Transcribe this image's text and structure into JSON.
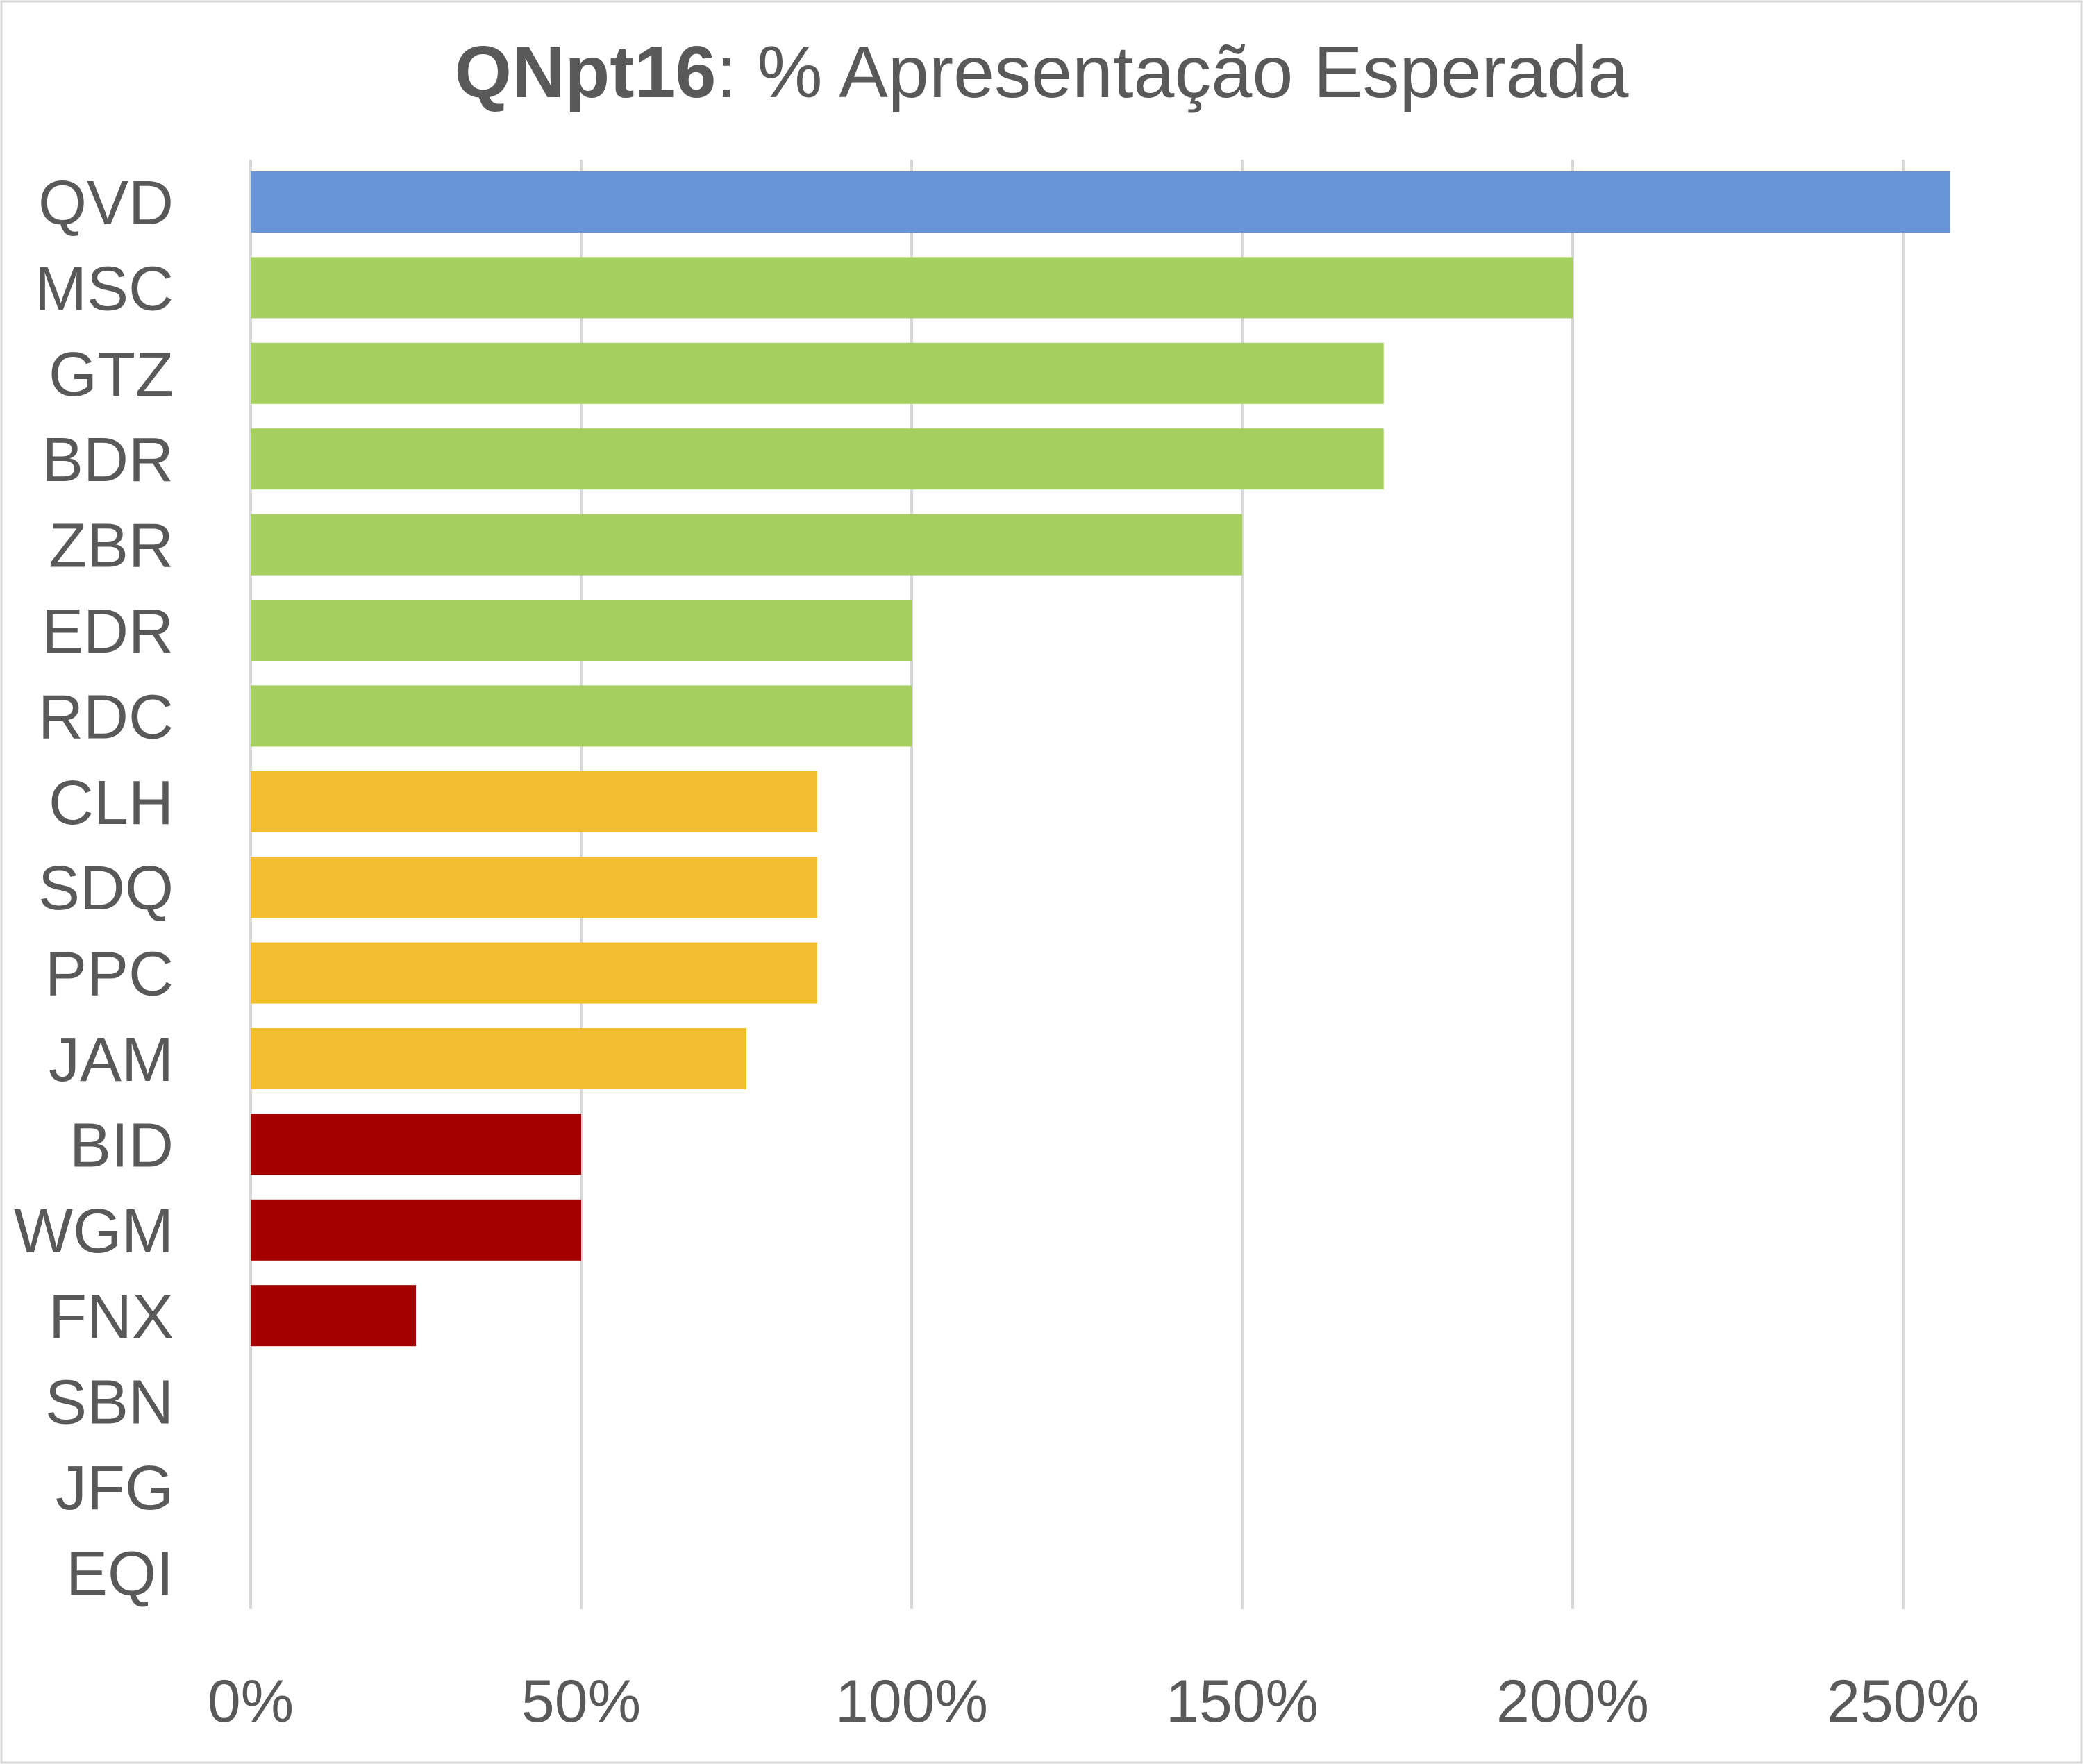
{
  "chart_data": {
    "type": "bar",
    "orientation": "horizontal",
    "title_bold": "QNpt16",
    "title_rest": ": % Apresentação Esperada",
    "categories": [
      "QVD",
      "MSC",
      "GTZ",
      "BDR",
      "ZBR",
      "EDR",
      "RDC",
      "CLH",
      "SDQ",
      "PPC",
      "JAM",
      "BID",
      "WGM",
      "FNX",
      "SBN",
      "JFG",
      "EQI"
    ],
    "values": [
      257.1,
      200,
      171.4,
      171.4,
      150,
      100,
      100,
      85.7,
      85.7,
      85.7,
      75,
      50,
      50,
      25,
      0,
      0,
      0
    ],
    "colors": [
      "#6895D6",
      "#A5D05E",
      "#A5D05E",
      "#A5D05E",
      "#A5D05E",
      "#A5D05E",
      "#A5D05E",
      "#F0BE2E",
      "#F0BE2E",
      "#F0BE2E",
      "#F0BE2E",
      "#A50000",
      "#A50000",
      "#A50000",
      "#A50000",
      "#A50000",
      "#A50000"
    ],
    "xlim": [
      0,
      250
    ],
    "xticks": [
      0,
      50,
      100,
      150,
      200,
      250
    ],
    "xtick_labels": [
      "0%",
      "50%",
      "100%",
      "150%",
      "200%",
      "250%"
    ],
    "xlabel": "",
    "ylabel": "",
    "grid": "vertical",
    "legend": "none"
  }
}
